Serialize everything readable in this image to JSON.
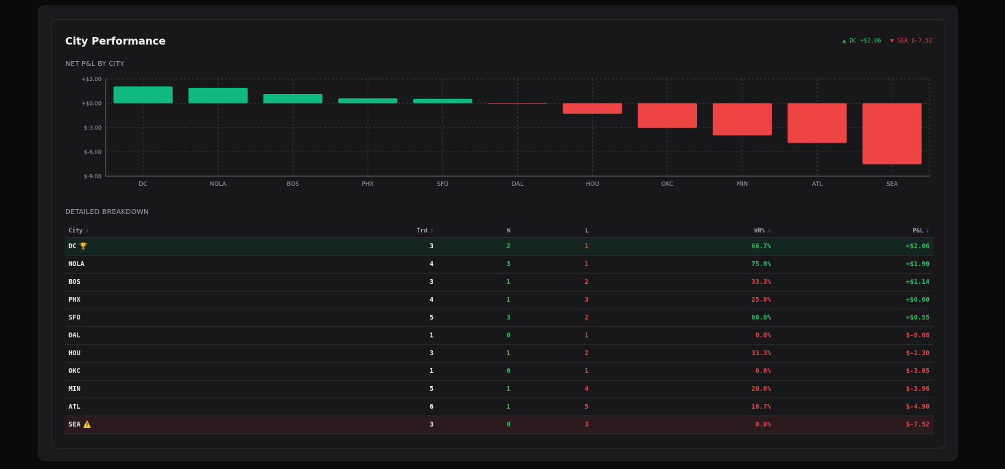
{
  "panel": {
    "title": "City Performance",
    "summary": {
      "best": "▲ DC +$2.06",
      "worst": "▼ SEA $-7.52"
    },
    "chart_label": "NET P&L BY CITY",
    "table_label": "DETAILED BREAKDOWN"
  },
  "colors": {
    "positive": "#10b981",
    "negative": "#ef4444",
    "accent": "#3b82f6"
  },
  "chart_data": {
    "type": "bar",
    "categories": [
      "DC",
      "NOLA",
      "BOS",
      "PHX",
      "SFO",
      "DAL",
      "HOU",
      "OKC",
      "MIN",
      "ATL",
      "SEA"
    ],
    "values": [
      2.06,
      1.9,
      1.14,
      0.6,
      0.55,
      -0.08,
      -1.3,
      -3.05,
      -3.96,
      -4.9,
      -7.52
    ],
    "ylim": [
      -9,
      3
    ],
    "yticks": [
      3,
      0,
      -3,
      -6,
      -9
    ],
    "ytick_labels": [
      "+$3.00",
      "+$0.00",
      "$-3.00",
      "$-6.00",
      "$-9.00"
    ],
    "grid": true
  },
  "table": {
    "headers": {
      "city": "City",
      "trd": "Trd",
      "w": "W",
      "l": "L",
      "wr": "WR%",
      "pnl": "P&L"
    },
    "sort_icon": "⇕",
    "active_sort_icon": "↓",
    "rows": [
      {
        "city": "DC",
        "badge": "🏆",
        "trd": "3",
        "w": "2",
        "l": "1",
        "wr": "66.7%",
        "pnl": "+$2.06"
      },
      {
        "city": "NOLA",
        "badge": "",
        "trd": "4",
        "w": "3",
        "l": "1",
        "wr": "75.0%",
        "pnl": "+$1.90"
      },
      {
        "city": "BOS",
        "badge": "",
        "trd": "3",
        "w": "1",
        "l": "2",
        "wr": "33.3%",
        "pnl": "+$1.14"
      },
      {
        "city": "PHX",
        "badge": "",
        "trd": "4",
        "w": "1",
        "l": "3",
        "wr": "25.0%",
        "pnl": "+$0.60"
      },
      {
        "city": "SFO",
        "badge": "",
        "trd": "5",
        "w": "3",
        "l": "2",
        "wr": "60.0%",
        "pnl": "+$0.55"
      },
      {
        "city": "DAL",
        "badge": "",
        "trd": "1",
        "w": "0",
        "l": "1",
        "wr": "0.0%",
        "pnl": "$-0.08"
      },
      {
        "city": "HOU",
        "badge": "",
        "trd": "3",
        "w": "1",
        "l": "2",
        "wr": "33.3%",
        "pnl": "$-1.30"
      },
      {
        "city": "OKC",
        "badge": "",
        "trd": "1",
        "w": "0",
        "l": "1",
        "wr": "0.0%",
        "pnl": "$-3.05"
      },
      {
        "city": "MIN",
        "badge": "",
        "trd": "5",
        "w": "1",
        "l": "4",
        "wr": "20.0%",
        "pnl": "$-3.96"
      },
      {
        "city": "ATL",
        "badge": "",
        "trd": "6",
        "w": "1",
        "l": "5",
        "wr": "16.7%",
        "pnl": "$-4.90"
      },
      {
        "city": "SEA",
        "badge": "⚠️",
        "trd": "3",
        "w": "0",
        "l": "3",
        "wr": "0.0%",
        "pnl": "$-7.52"
      }
    ]
  }
}
